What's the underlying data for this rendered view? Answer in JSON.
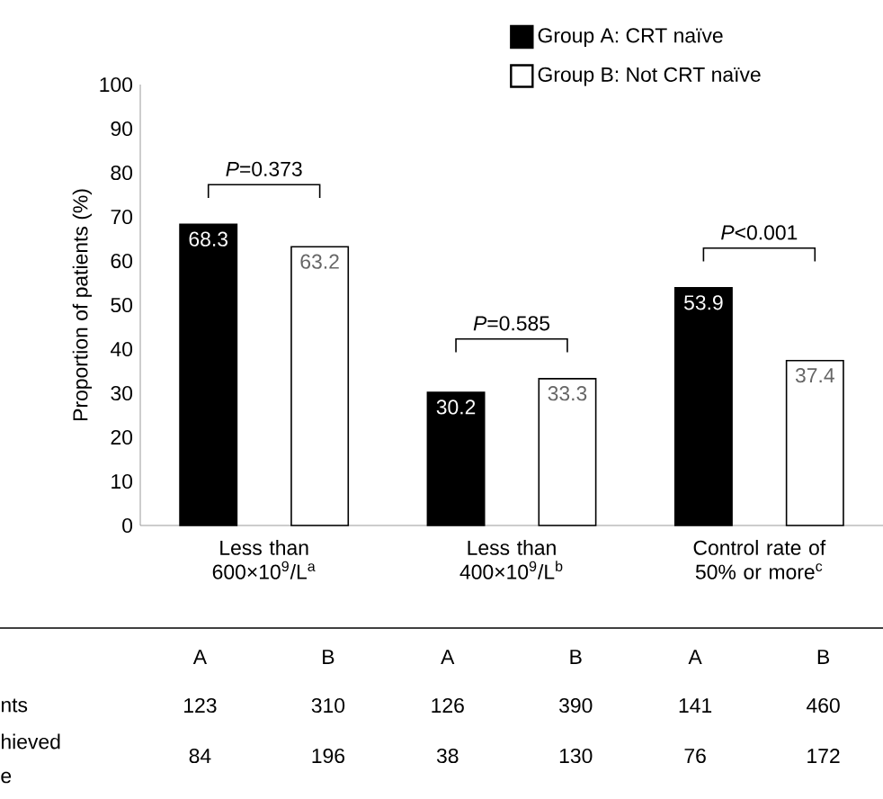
{
  "chart_data": {
    "type": "bar",
    "ylabel": "Proportion of patients (%)",
    "categories": [
      "Less than 600×10$^{9}$/L$^{a}$",
      "Less than 400×10$^{9}$/L$^{b}$",
      "Control rate of 50% or more$^{c}$"
    ],
    "series": [
      {
        "name": "Group A: CRT naïve",
        "color": "#000000",
        "values": [
          68.3,
          30.2,
          53.9
        ]
      },
      {
        "name": "Group B: Not CRT naïve",
        "color": "#ffffff",
        "values": [
          63.2,
          33.3,
          37.4
        ]
      }
    ],
    "ylim": [
      0,
      100
    ],
    "yticks": [
      0,
      10,
      20,
      30,
      40,
      50,
      60,
      70,
      80,
      90,
      100
    ],
    "data_labels": true,
    "legend": "top right",
    "annotations": [
      "*P*=0.373",
      "*P*=0.585",
      "*P*<0.001",
      "A",
      "B",
      "A",
      "B",
      "A",
      "B",
      "nts",
      "123",
      "310",
      "126",
      "390",
      "141",
      "460",
      "hieved",
      "e",
      "84",
      "196",
      "38",
      "130",
      "76",
      "172"
    ]
  }
}
